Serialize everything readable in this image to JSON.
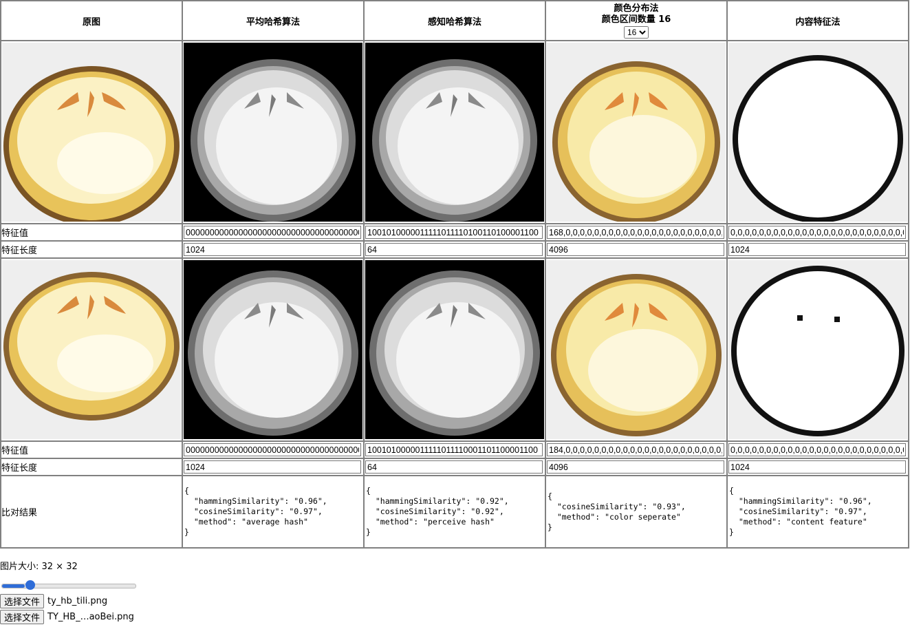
{
  "headers": {
    "original": "原图",
    "ahash": "平均哈希算法",
    "phash": "感知哈希算法",
    "color_title": "颜色分布法",
    "color_bins_label": "颜色区间数量 16",
    "content": "内容特征法"
  },
  "bins_select": {
    "selected": "16"
  },
  "row_labels": {
    "feature_value": "特征值",
    "feature_length": "特征长度",
    "compare_result": "比对结果"
  },
  "image1": {
    "ahash_value": "0000000000000000000000000000000000000000",
    "phash_value": "1001010000011111011110100110100001100",
    "color_value": "168,0,0,0,0,0,0,0,0,0,0,0,0,0,0,0,0,0,0,0,0,0,0,0",
    "content_value": "0,0,0,0,0,0,0,0,0,0,0,0,0,0,0,0,0,0,0,0,0,0,0,0,0,0",
    "ahash_length": "1024",
    "phash_length": "64",
    "color_length": "4096",
    "content_length": "1024"
  },
  "image2": {
    "ahash_value": "0000000000000000000000000000000000000000",
    "phash_value": "1001010000011111011110001101100001100",
    "color_value": "184,0,0,0,0,0,0,0,0,0,0,0,0,0,0,0,0,0,0,0,0,0,0,0",
    "content_value": "0,0,0,0,0,0,0,0,0,0,0,0,0,0,0,0,0,0,0,0,0,0,0,0,0,0",
    "ahash_length": "1024",
    "phash_length": "64",
    "color_length": "4096",
    "content_length": "1024"
  },
  "results": {
    "ahash": "{\n  \"hammingSimilarity\": \"0.96\",\n  \"cosineSimilarity\": \"0.97\",\n  \"method\": \"average hash\"\n}",
    "phash": "{\n  \"hammingSimilarity\": \"0.92\",\n  \"cosineSimilarity\": \"0.92\",\n  \"method\": \"perceive hash\"\n}",
    "color": "{\n  \"cosineSimilarity\": \"0.93\",\n  \"method\": \"color seperate\"\n}",
    "content": "{\n  \"hammingSimilarity\": \"0.96\",\n  \"cosineSimilarity\": \"0.97\",\n  \"method\": \"content feature\"\n}"
  },
  "image_size_text": "图片大小: 32 × 32",
  "slider": {
    "value_fraction": 0.17
  },
  "file_inputs": [
    {
      "button": "选择文件",
      "filename": "ty_hb_tili.png"
    },
    {
      "button": "选择文件",
      "filename": "TY_HB_…aoBei.png"
    }
  ],
  "colors": {
    "bun_outer": "#7a5424",
    "bun_rim": "#e8c35a",
    "bun_fill": "#fbf1c4",
    "bun_highlight": "#fffbe8",
    "bun_pleat": "#d98a3d",
    "gray_bg": "#000000",
    "panel_bg": "#eeeeee",
    "slider_accent": "#2f6dd8"
  }
}
